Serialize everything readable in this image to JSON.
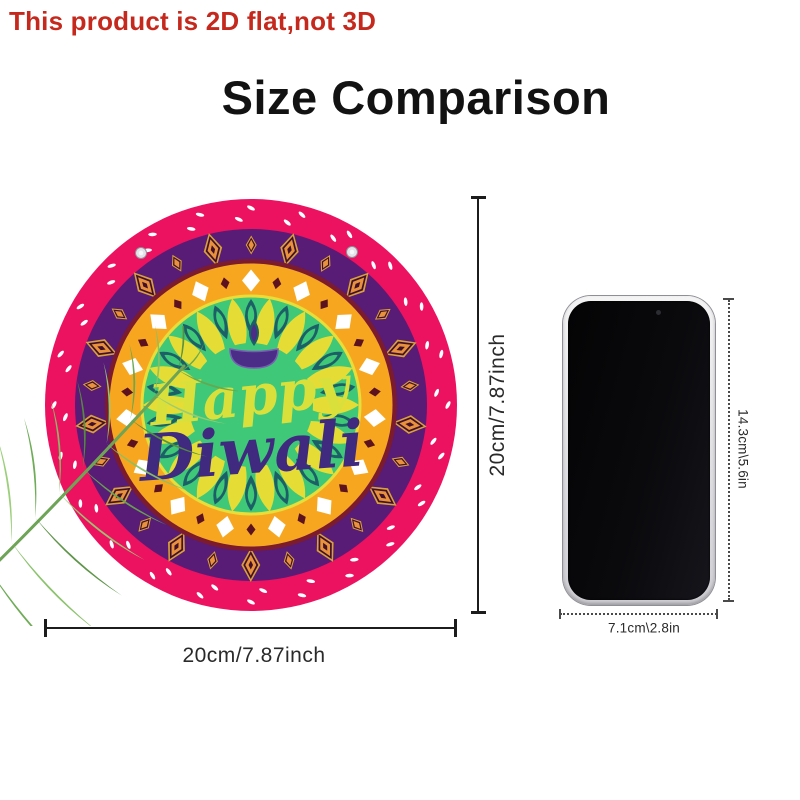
{
  "disclaimer": "This product is 2D flat,not 3D",
  "title": "Size Comparison",
  "sign": {
    "greeting_line1": "Happy",
    "greeting_line2": "Diwali",
    "height_label": "20cm/7.87inch",
    "width_label": "20cm/7.87inch"
  },
  "phone": {
    "height_label": "14.3cm\\5.6in",
    "width_label": "7.1cm\\2.8in"
  },
  "colors": {
    "disclaimer_red": "#c5291d",
    "ring_pink": "#ec1260",
    "ring_purple": "#581b76",
    "ring_maroon": "#7c1b2d",
    "ring_orange": "#f7a71f",
    "center_green": "#3ec878",
    "edge_yellow": "#e9dd3a",
    "petal_yellow": "#e5dd35",
    "petal_teal": "#1c5f66",
    "diamond_gold": "#d9a13c",
    "diamond_dark": "#43102c",
    "diamond_orange": "#e8933c",
    "diamond_maroon": "#5d1220",
    "dash_white": "#ffffff",
    "text_yellow": "#d9e03c",
    "text_purple": "#3f2a80",
    "diya_purple": "#4b2c86",
    "leaf_green": "#6fae52"
  }
}
